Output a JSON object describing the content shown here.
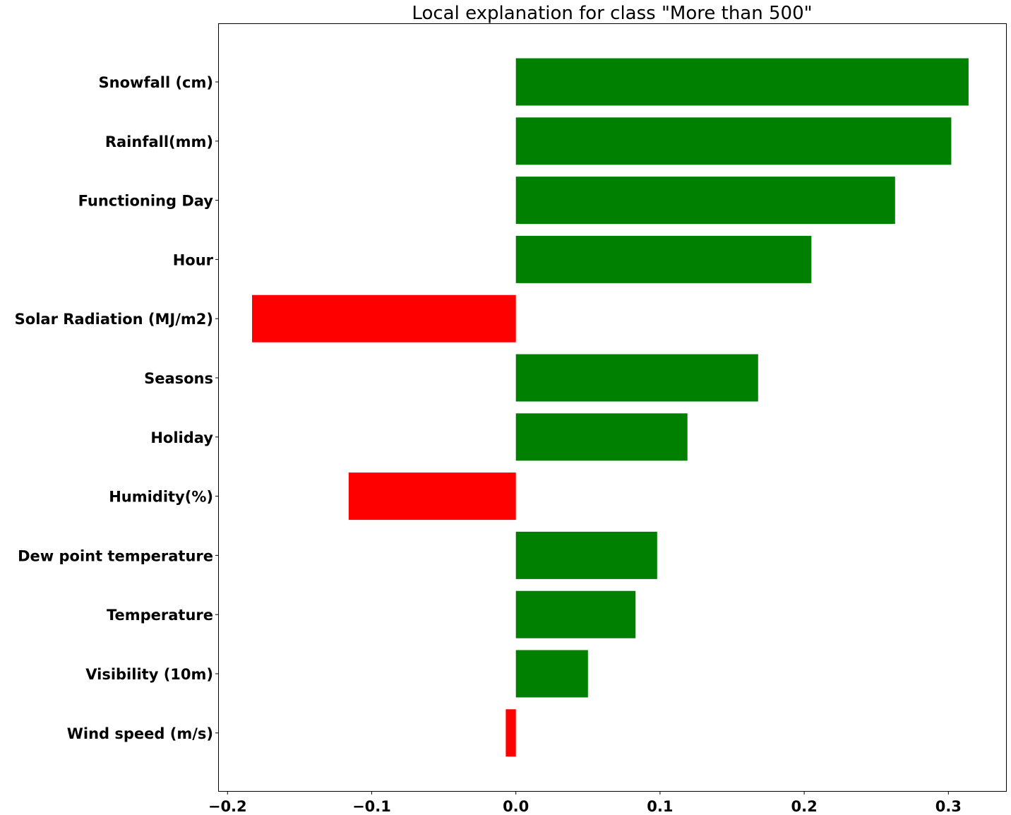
{
  "chart_data": {
    "type": "bar",
    "orientation": "horizontal",
    "title": "Local explanation for class \"More than 500\"",
    "xlabel": "",
    "ylabel": "",
    "xlim": [
      -0.206,
      0.34
    ],
    "xticks": [
      -0.2,
      -0.1,
      0.0,
      0.1,
      0.2,
      0.3
    ],
    "xtick_labels": [
      "−0.2",
      "−0.1",
      "0.0",
      "0.1",
      "0.2",
      "0.3"
    ],
    "grid": false,
    "legend": "none",
    "categories": [
      "Snowfall (cm)",
      "Rainfall(mm)",
      "Functioning Day",
      "Hour",
      "Solar Radiation (MJ/m2)",
      "Seasons",
      "Holiday",
      "Humidity(%)",
      "Dew point temperature",
      "Temperature",
      "Visibility (10m)",
      "Wind speed (m/s)"
    ],
    "values": [
      0.314,
      0.302,
      0.263,
      0.205,
      -0.183,
      0.168,
      0.119,
      -0.116,
      0.098,
      0.083,
      0.05,
      -0.007
    ],
    "colors": {
      "positive": "#008000",
      "negative": "#ff0000"
    }
  }
}
